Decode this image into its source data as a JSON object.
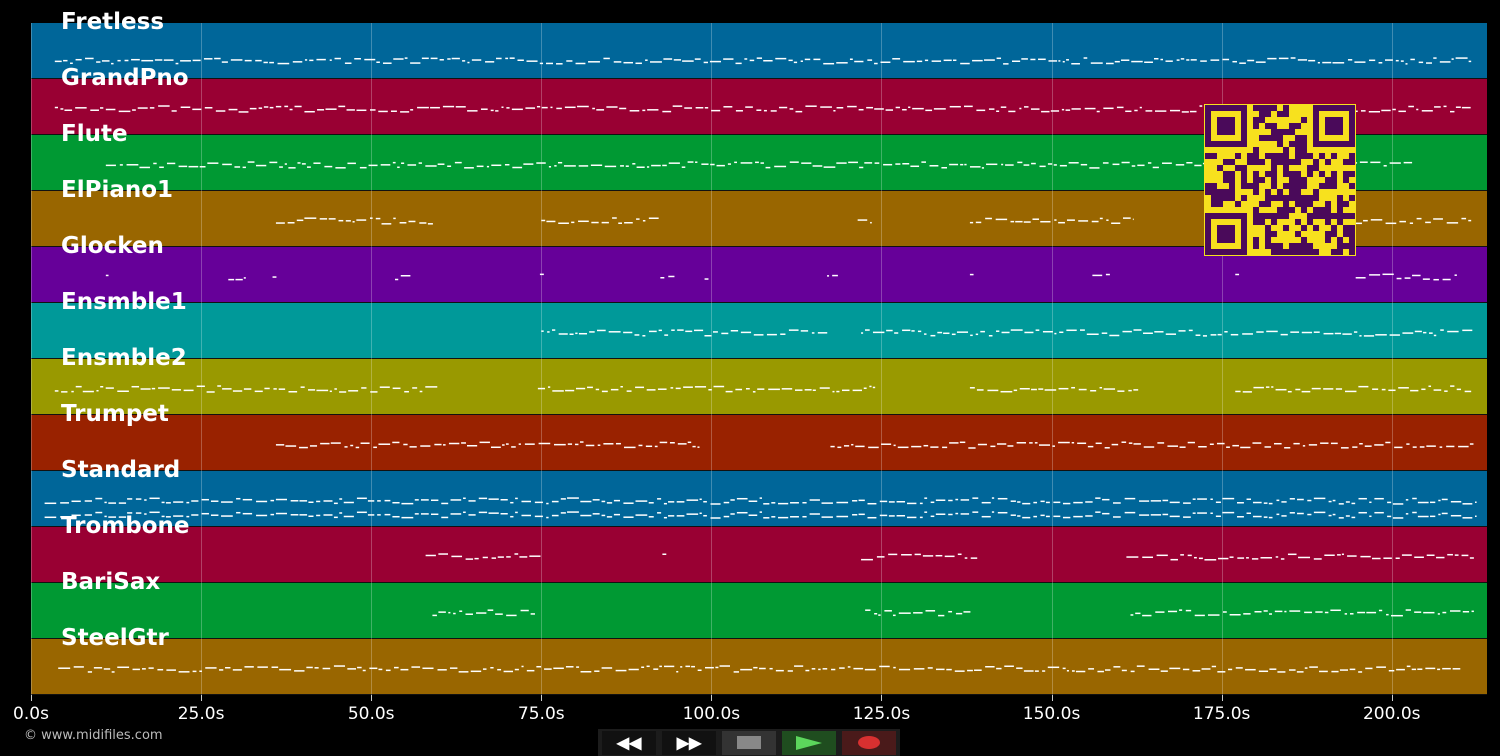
{
  "tracks": [
    {
      "name": "Fretless",
      "color": "#006699",
      "segments": [
        [
          3.5,
          211.6
        ]
      ]
    },
    {
      "name": "GrandPno",
      "color": "#990033",
      "segments": [
        [
          3.5,
          212
        ]
      ]
    },
    {
      "name": "Flute",
      "color": "#009933",
      "segments": [
        [
          11,
          203
        ]
      ]
    },
    {
      "name": "ElPiano1",
      "color": "#996600",
      "segments": [
        [
          36,
          59
        ],
        [
          75,
          92.5
        ],
        [
          121.5,
          123.5
        ],
        [
          138,
          162
        ],
        [
          194.7,
          211.6
        ]
      ]
    },
    {
      "name": "Glocken",
      "color": "#660099",
      "segments": [
        [
          11,
          11.5
        ],
        [
          29,
          31.5
        ],
        [
          35.5,
          36
        ],
        [
          53.5,
          56
        ],
        [
          74.8,
          75.3
        ],
        [
          92.5,
          94.5
        ],
        [
          99,
          99.5
        ],
        [
          117,
          119
        ],
        [
          138,
          138.5
        ],
        [
          156,
          158.5
        ],
        [
          177,
          177.5
        ],
        [
          194.7,
          209.5
        ]
      ]
    },
    {
      "name": "Ensmble1",
      "color": "#009999",
      "segments": [
        [
          75,
          117
        ],
        [
          122,
          212
        ]
      ]
    },
    {
      "name": "Ensmble2",
      "color": "#999900",
      "segments": [
        [
          3.5,
          60
        ],
        [
          74.5,
          124
        ],
        [
          138,
          163
        ],
        [
          177,
          211.6
        ]
      ]
    },
    {
      "name": "Trumpet",
      "color": "#992200",
      "segments": [
        [
          36,
          98.7
        ],
        [
          117.5,
          212
        ]
      ]
    },
    {
      "name": "Standard",
      "color": "#006699",
      "segments": [
        [
          2,
          212.4
        ]
      ]
    },
    {
      "name": "Trombone",
      "color": "#990033",
      "segments": [
        [
          58,
          75
        ],
        [
          92.8,
          93.3
        ],
        [
          122,
          139
        ],
        [
          161,
          212
        ]
      ]
    },
    {
      "name": "BariSax",
      "color": "#009933",
      "segments": [
        [
          59,
          74
        ],
        [
          122.6,
          138
        ],
        [
          161.6,
          212
        ]
      ]
    },
    {
      "name": "SteelGtr",
      "color": "#996600",
      "segments": [
        [
          4,
          210
        ]
      ]
    }
  ],
  "axis": {
    "max_seconds": 214,
    "ticks": [
      "0.0s",
      "25.0s",
      "50.0s",
      "75.0s",
      "100.0s",
      "125.0s",
      "150.0s",
      "175.0s",
      "200.0s"
    ],
    "tick_values": [
      0,
      25,
      50,
      75,
      100,
      125,
      150,
      175,
      200
    ]
  },
  "copyright": "© www.midifiles.com",
  "controls": {
    "rewind": "rewind-icon",
    "forward": "fast-forward-icon",
    "stop": "stop-icon",
    "play": "play-icon",
    "record": "record-icon"
  },
  "qr_colors": {
    "fg": "#4a0a5a",
    "bg": "#f7e11e"
  }
}
